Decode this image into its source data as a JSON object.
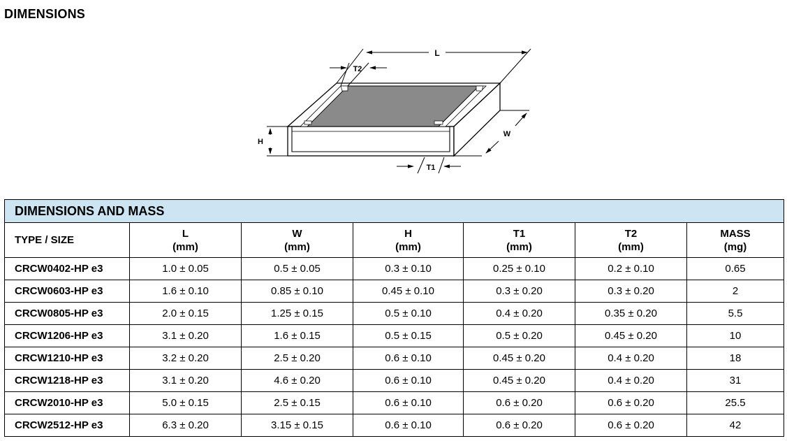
{
  "heading": "DIMENSIONS",
  "diagram": {
    "labels": {
      "L": "L",
      "T2": "T2",
      "W": "W",
      "H": "H",
      "T1": "T1"
    }
  },
  "table": {
    "caption": "DIMENSIONS AND MASS",
    "headers": [
      {
        "name": "TYPE / SIZE",
        "unit": ""
      },
      {
        "name": "L",
        "unit": "(mm)"
      },
      {
        "name": "W",
        "unit": "(mm)"
      },
      {
        "name": "H",
        "unit": "(mm)"
      },
      {
        "name": "T1",
        "unit": "(mm)"
      },
      {
        "name": "T2",
        "unit": "(mm)"
      },
      {
        "name": "MASS",
        "unit": "(mg)"
      }
    ],
    "rows": [
      [
        "CRCW0402-HP e3",
        "1.0 ± 0.05",
        "0.5 ± 0.05",
        "0.3 ± 0.10",
        "0.25 ± 0.10",
        "0.2 ± 0.10",
        "0.65"
      ],
      [
        "CRCW0603-HP e3",
        "1.6 ± 0.10",
        "0.85 ± 0.10",
        "0.45 ± 0.10",
        "0.3 ± 0.20",
        "0.3 ± 0.20",
        "2"
      ],
      [
        "CRCW0805-HP e3",
        "2.0 ± 0.15",
        "1.25 ± 0.15",
        "0.5 ± 0.10",
        "0.4 ± 0.20",
        "0.35 ± 0.20",
        "5.5"
      ],
      [
        "CRCW1206-HP e3",
        "3.1 ± 0.20",
        "1.6 ± 0.15",
        "0.5 ± 0.15",
        "0.5 ± 0.20",
        "0.45 ± 0.20",
        "10"
      ],
      [
        "CRCW1210-HP e3",
        "3.2 ± 0.20",
        "2.5 ± 0.20",
        "0.6 ± 0.10",
        "0.45 ± 0.20",
        "0.4 ± 0.20",
        "18"
      ],
      [
        "CRCW1218-HP e3",
        "3.1 ± 0.20",
        "4.6 ± 0.20",
        "0.6 ± 0.10",
        "0.45 ± 0.20",
        "0.4 ± 0.20",
        "31"
      ],
      [
        "CRCW2010-HP e3",
        "5.0 ± 0.15",
        "2.5 ± 0.15",
        "0.6 ± 0.10",
        "0.6 ± 0.20",
        "0.6 ± 0.20",
        "25.5"
      ],
      [
        "CRCW2512-HP e3",
        "6.3 ± 0.20",
        "3.15 ± 0.15",
        "0.6 ± 0.10",
        "0.6 ± 0.20",
        "0.6 ± 0.20",
        "42"
      ]
    ]
  }
}
